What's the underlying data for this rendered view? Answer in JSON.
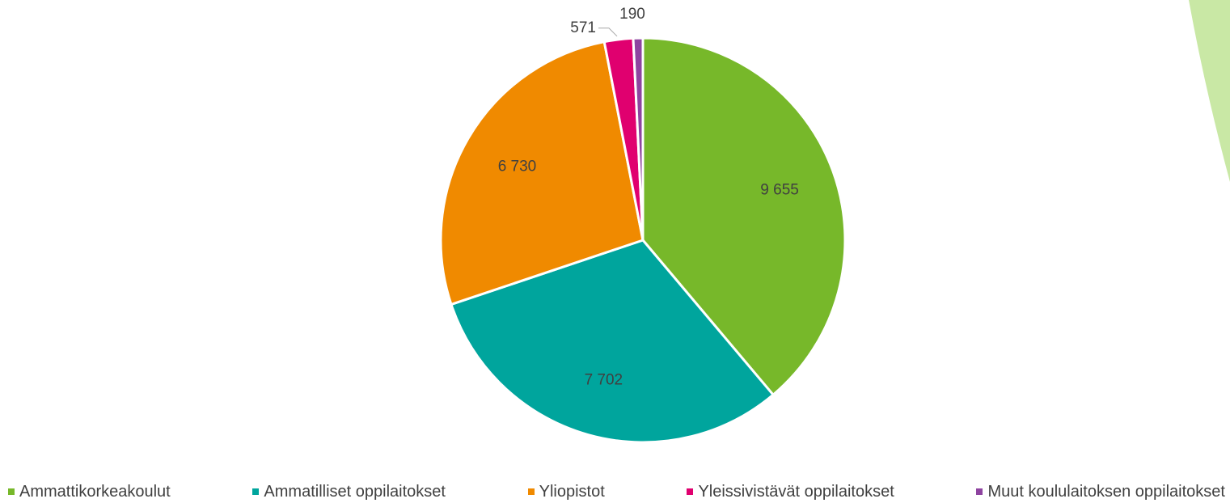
{
  "chart_data": {
    "type": "pie",
    "categories": [
      "Ammattikorkeakoulut",
      "Ammatilliset oppilaitokset",
      "Yliopistot",
      "Yleissivistävät oppilaitokset",
      "Muut koululaitoksen oppilaitokset"
    ],
    "values": [
      9655,
      7702,
      6730,
      571,
      190
    ],
    "value_labels": [
      "9 655",
      "7 702",
      "6 730",
      "571",
      "190"
    ],
    "colors": [
      "#77b82a",
      "#00a59d",
      "#f08a00",
      "#e0006f",
      "#8e44a0"
    ],
    "legend": "bottom"
  }
}
